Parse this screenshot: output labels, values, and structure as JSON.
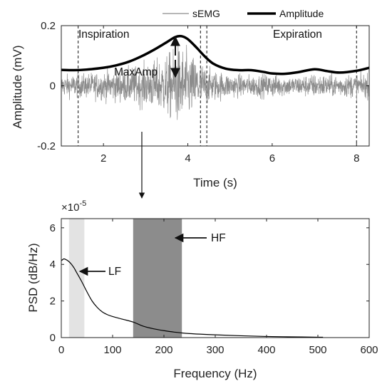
{
  "chart_data": [
    {
      "type": "line",
      "xlabel": "Time (s)",
      "ylabel": "Amplitude (mV)",
      "xlim": [
        1,
        8.3
      ],
      "ylim": [
        -0.2,
        0.2
      ],
      "x_ticks": [
        2,
        4,
        6,
        8
      ],
      "y_ticks": [
        -0.2,
        0,
        0.2
      ],
      "x_tick_labels": [
        "2",
        "4",
        "6",
        "8"
      ],
      "y_tick_labels": [
        "-0.2",
        "0",
        "0.2"
      ],
      "legend": {
        "position": "top-right",
        "entries": [
          "sEMG",
          "Amplitude"
        ]
      },
      "series": [
        {
          "name": "sEMG",
          "color": "#8c8c8c",
          "style": "noise",
          "envelope": {
            "x": [
              1.0,
              1.5,
              2.0,
              2.5,
              3.0,
              3.3,
              3.6,
              3.8,
              4.0,
              4.3,
              4.5,
              5.0,
              5.5,
              6.0,
              6.5,
              7.0,
              7.5,
              8.0,
              8.3
            ],
            "y": [
              0.045,
              0.05,
              0.06,
              0.07,
              0.09,
              0.11,
              0.14,
              0.17,
              0.14,
              0.1,
              0.07,
              0.05,
              0.045,
              0.05,
              0.04,
              0.05,
              0.045,
              0.05,
              0.05
            ]
          }
        },
        {
          "name": "Amplitude",
          "color": "#000000",
          "x": [
            1.0,
            1.3,
            1.6,
            2.0,
            2.3,
            2.6,
            2.9,
            3.2,
            3.5,
            3.7,
            3.85,
            4.0,
            4.2,
            4.4,
            4.6,
            4.9,
            5.2,
            5.5,
            5.8,
            6.0,
            6.3,
            6.6,
            7.0,
            7.3,
            7.6,
            8.0,
            8.3
          ],
          "y": [
            0.053,
            0.052,
            0.054,
            0.06,
            0.068,
            0.08,
            0.098,
            0.12,
            0.145,
            0.162,
            0.165,
            0.155,
            0.128,
            0.098,
            0.074,
            0.057,
            0.052,
            0.052,
            0.046,
            0.041,
            0.04,
            0.045,
            0.055,
            0.049,
            0.044,
            0.05,
            0.06
          ]
        }
      ],
      "vlines": [
        1.4,
        4.3,
        4.45,
        8.0
      ],
      "annotations": [
        {
          "text": "Inspiration",
          "x": 1.2,
          "y": 0.17
        },
        {
          "text": "Expiration",
          "x": 6.0,
          "y": 0.17
        },
        {
          "text": "MaxAmp",
          "x": 3.7,
          "y": 0.05
        }
      ]
    },
    {
      "type": "area",
      "xlabel": "Frequency (Hz)",
      "ylabel": "PSD (dB/Hz)",
      "y_scale_label": "×10",
      "y_scale_exponent": "-5",
      "xlim": [
        0,
        600
      ],
      "ylim": [
        0,
        6.5
      ],
      "x_ticks": [
        0,
        100,
        200,
        300,
        400,
        500,
        600
      ],
      "y_ticks": [
        0,
        2,
        4,
        6
      ],
      "x_tick_labels": [
        "0",
        "100",
        "200",
        "300",
        "400",
        "500",
        "600"
      ],
      "y_tick_labels": [
        "0",
        "2",
        "4",
        "6"
      ],
      "bands": [
        {
          "label": "LF",
          "from": 15,
          "to": 45,
          "color": "#e3e3e3"
        },
        {
          "label": "HF",
          "from": 140,
          "to": 235,
          "color": "#8c8c8c"
        }
      ],
      "series": [
        {
          "color": "#000000",
          "x": [
            0,
            5,
            10,
            15,
            20,
            25,
            30,
            40,
            50,
            60,
            70,
            80,
            90,
            100,
            120,
            140,
            160,
            180,
            200,
            220,
            250,
            300,
            350,
            400,
            450,
            500,
            510
          ],
          "y": [
            4.2,
            4.3,
            4.25,
            4.15,
            4.0,
            3.8,
            3.55,
            3.05,
            2.5,
            2.0,
            1.65,
            1.4,
            1.25,
            1.15,
            1.0,
            0.85,
            0.62,
            0.48,
            0.38,
            0.3,
            0.22,
            0.15,
            0.1,
            0.06,
            0.04,
            0.02,
            0.02
          ]
        }
      ]
    }
  ]
}
